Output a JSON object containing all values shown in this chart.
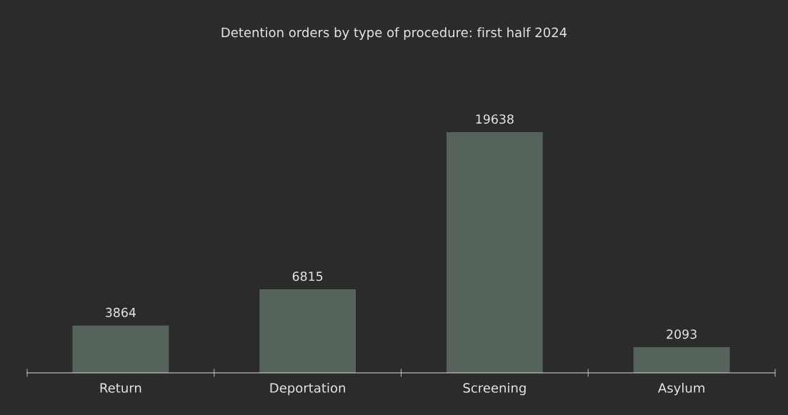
{
  "chart_data": {
    "type": "bar",
    "title": "Detention orders by type of procedure: first half 2024",
    "categories": [
      "Return",
      "Deportation",
      "Screening",
      "Asylum"
    ],
    "values": [
      3864,
      6815,
      19638,
      2093
    ],
    "color": "#56635a",
    "data_labels": true,
    "grid": false,
    "legend": false
  }
}
